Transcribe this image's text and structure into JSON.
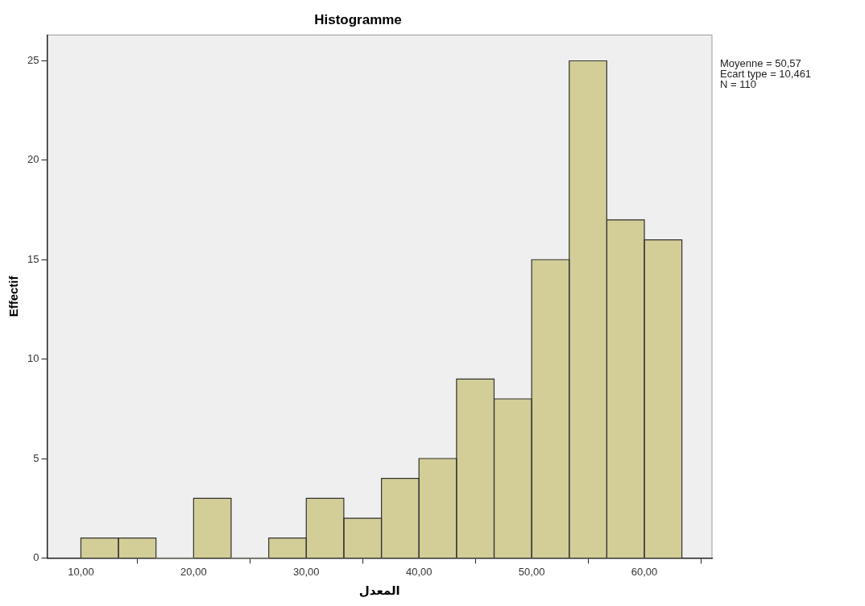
{
  "chart_data": {
    "type": "histogram",
    "title": "Histogramme",
    "xlabel": "المعدل",
    "ylabel": "Effectif",
    "bins": [
      10,
      13.33,
      16.67,
      20,
      23.33,
      26.67,
      30,
      33.33,
      36.67,
      40,
      43.33,
      46.67,
      50,
      53.33,
      56.67,
      60,
      63.33
    ],
    "values": [
      1,
      1,
      0,
      3,
      0,
      1,
      3,
      2,
      4,
      5,
      9,
      8,
      15,
      25,
      17,
      16
    ],
    "color": "#d3ce98",
    "xlim": [
      7,
      66
    ],
    "xticks": [
      {
        "value": 10,
        "label": "10,00"
      },
      {
        "value": 20,
        "label": "20,00"
      },
      {
        "value": 30,
        "label": "30,00"
      },
      {
        "value": 40,
        "label": "40,00"
      },
      {
        "value": 50,
        "label": "50,00"
      },
      {
        "value": 60,
        "label": "60,00"
      }
    ],
    "ylim": [
      0,
      26.3
    ],
    "yticks": [
      0,
      5,
      10,
      15,
      20,
      25
    ],
    "annotations": [
      "Moyenne = 50,57",
      "Ecart type = 10,461",
      "N = 110"
    ],
    "grid": false,
    "legend": false
  }
}
